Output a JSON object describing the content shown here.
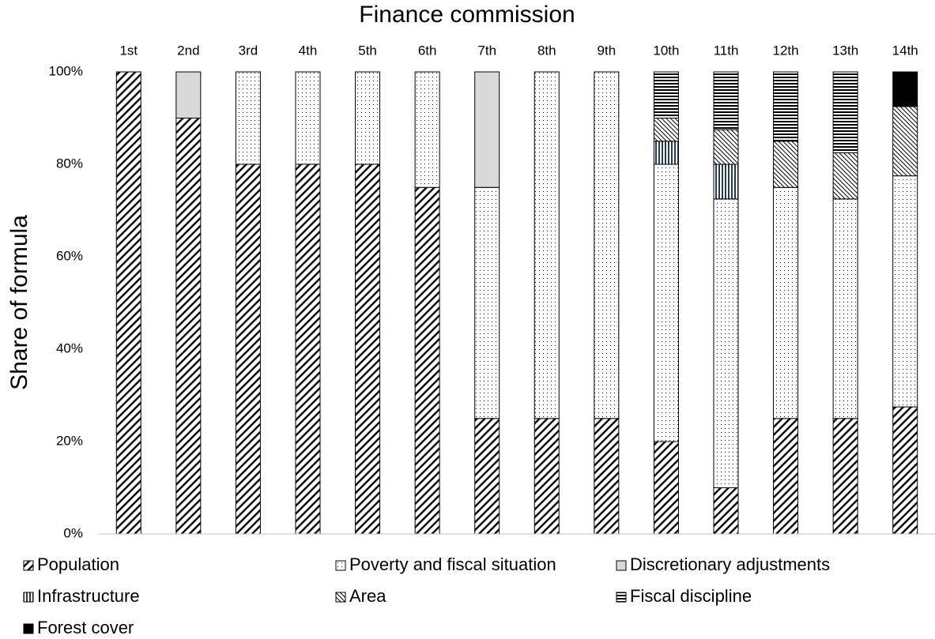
{
  "chart_data": {
    "type": "stacked-bar",
    "title": "Finance commission",
    "y_label": "Share of formula",
    "categories": [
      "1st",
      "2nd",
      "3rd",
      "4th",
      "5th",
      "6th",
      "7th",
      "8th",
      "9th",
      "10th",
      "11th",
      "12th",
      "13th",
      "14th"
    ],
    "series": [
      {
        "name": "Population",
        "color": "#000000",
        "pattern": "diagonal-up",
        "values": [
          100,
          90,
          80,
          80,
          80,
          75,
          25,
          25,
          25,
          20,
          10,
          25,
          25,
          27.5
        ]
      },
      {
        "name": "Poverty and fiscal situation",
        "color": "#000000",
        "pattern": "dots",
        "values": [
          0,
          0,
          20,
          20,
          20,
          25,
          50,
          75,
          75,
          60,
          62.5,
          50,
          47.5,
          50
        ]
      },
      {
        "name": "Discretionary adjustments",
        "color": "#d9d9d9",
        "pattern": "solid",
        "values": [
          0,
          10,
          0,
          0,
          0,
          0,
          25,
          0,
          0,
          0,
          0,
          0,
          0,
          0
        ]
      },
      {
        "name": "Infrastructure",
        "color": "#1f3864",
        "pattern": "vertical",
        "values": [
          0,
          0,
          0,
          0,
          0,
          0,
          0,
          0,
          0,
          5,
          7.5,
          0,
          0,
          0
        ]
      },
      {
        "name": "Area",
        "color": "#000000",
        "pattern": "diagonal-down",
        "values": [
          0,
          0,
          0,
          0,
          0,
          0,
          0,
          0,
          0,
          5,
          7.5,
          10,
          10,
          15
        ]
      },
      {
        "name": "Fiscal discipline",
        "color": "#000000",
        "pattern": "horizontal",
        "values": [
          0,
          0,
          0,
          0,
          0,
          0,
          0,
          0,
          0,
          10,
          12.5,
          15,
          17.5,
          0
        ]
      },
      {
        "name": "Forest cover",
        "color": "#000000",
        "pattern": "solid",
        "values": [
          0,
          0,
          0,
          0,
          0,
          0,
          0,
          0,
          0,
          0,
          0,
          0,
          0,
          7.5
        ]
      }
    ],
    "ylim": [
      0,
      100
    ],
    "yticks": [
      {
        "value": 0,
        "label": "0%"
      },
      {
        "value": 20,
        "label": "20%"
      },
      {
        "value": 40,
        "label": "40%"
      },
      {
        "value": 60,
        "label": "60%"
      },
      {
        "value": 80,
        "label": "80%"
      },
      {
        "value": 100,
        "label": "100%"
      }
    ],
    "grid": false
  }
}
